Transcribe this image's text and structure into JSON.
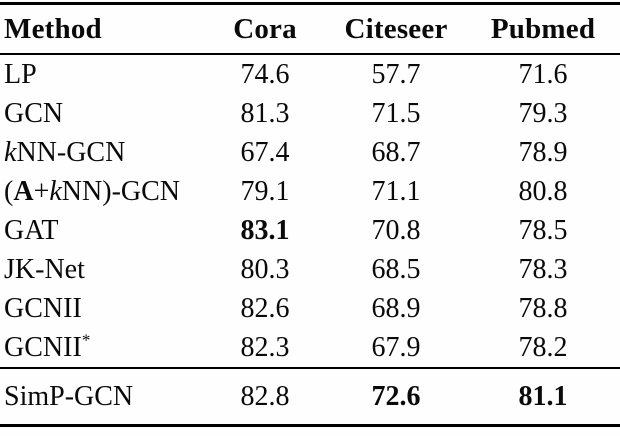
{
  "page": {
    "background_color": "#fefefe",
    "text_color": "#0a0a0a",
    "rule_color": "#000000"
  },
  "table": {
    "columns": [
      {
        "label": "Method",
        "align": "left"
      },
      {
        "label": "Cora",
        "align": "center"
      },
      {
        "label": "Citeseer",
        "align": "center"
      },
      {
        "label": "Pubmed",
        "align": "center"
      }
    ],
    "body_rows": [
      {
        "method": [
          {
            "text": "LP"
          }
        ],
        "values": [
          {
            "text": "74.6"
          },
          {
            "text": "57.7"
          },
          {
            "text": "71.6"
          }
        ]
      },
      {
        "method": [
          {
            "text": "GCN"
          }
        ],
        "values": [
          {
            "text": "81.3"
          },
          {
            "text": "71.5"
          },
          {
            "text": "79.3"
          }
        ]
      },
      {
        "method": [
          {
            "text": "k",
            "italic": true
          },
          {
            "text": "NN-GCN"
          }
        ],
        "values": [
          {
            "text": "67.4"
          },
          {
            "text": "68.7"
          },
          {
            "text": "78.9"
          }
        ]
      },
      {
        "method": [
          {
            "text": "("
          },
          {
            "text": "A",
            "bold": true
          },
          {
            "text": "+"
          },
          {
            "text": "k",
            "italic": true
          },
          {
            "text": "NN)-GCN"
          }
        ],
        "values": [
          {
            "text": "79.1"
          },
          {
            "text": "71.1"
          },
          {
            "text": "80.8"
          }
        ]
      },
      {
        "method": [
          {
            "text": "GAT"
          }
        ],
        "values": [
          {
            "text": "83.1",
            "bold": true
          },
          {
            "text": "70.8"
          },
          {
            "text": "78.5"
          }
        ]
      },
      {
        "method": [
          {
            "text": "JK-Net"
          }
        ],
        "values": [
          {
            "text": "80.3"
          },
          {
            "text": "68.5"
          },
          {
            "text": "78.3"
          }
        ]
      },
      {
        "method": [
          {
            "text": "GCNII"
          }
        ],
        "values": [
          {
            "text": "82.6"
          },
          {
            "text": "68.9"
          },
          {
            "text": "78.8"
          }
        ]
      },
      {
        "method": [
          {
            "text": "GCNII"
          },
          {
            "text": "*",
            "sup": true
          }
        ],
        "values": [
          {
            "text": "82.3"
          },
          {
            "text": "67.9"
          },
          {
            "text": "78.2"
          }
        ]
      }
    ],
    "footer_rows": [
      {
        "method": [
          {
            "text": "SimP-GCN"
          }
        ],
        "values": [
          {
            "text": "82.8"
          },
          {
            "text": "72.6",
            "bold": true
          },
          {
            "text": "81.1",
            "bold": true
          }
        ]
      }
    ]
  }
}
